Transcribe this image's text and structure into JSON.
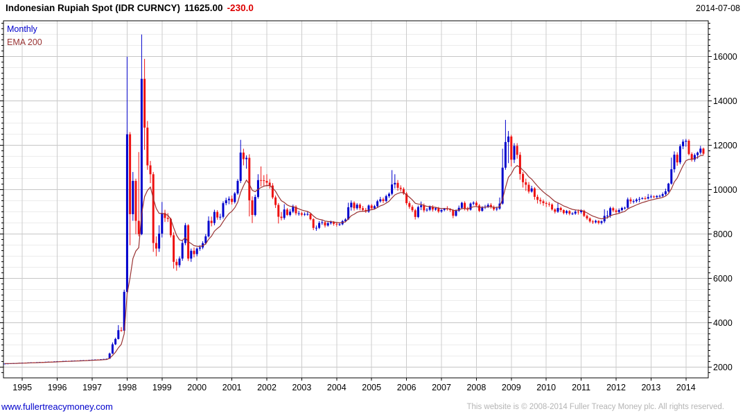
{
  "title": {
    "instrument": "Indonesian Rupiah Spot (IDR CURNCY)",
    "last": "11625.00",
    "change": "-230.0",
    "date": "2014-07-08"
  },
  "legend": {
    "series_label": "Monthly",
    "ema_label": "EMA 200"
  },
  "footer": {
    "site_link": "www.fullertreacymoney.com",
    "copyright": "This website is © 2008-2014 Fuller Treacy Money plc. All rights reserved."
  },
  "colors": {
    "up_candle": "#0000cc",
    "down_candle": "#ee1111",
    "ema_line": "#993333",
    "grid_minor": "#ececec",
    "grid_major": "#c6c6c6",
    "grid_year": "#cccccc",
    "axis": "#000000",
    "change_text": "#dd0000",
    "link_text": "#0000cc",
    "copyright_text": "#b4b4b4"
  },
  "chart_data": {
    "type": "candlestick",
    "title": "Indonesian Rupiah Spot (IDR CURNCY)",
    "timeframe": "Monthly",
    "start_month": "1994-07",
    "end_month": "2014-07",
    "last_price": 11625.0,
    "change": -230.0,
    "ylim": [
      1520,
      17620
    ],
    "y_ticks": [
      2000,
      4000,
      6000,
      8000,
      10000,
      12000,
      14000,
      16000
    ],
    "y_minor_step": 500,
    "x_ticks": [
      1995,
      1996,
      1997,
      1998,
      1999,
      2000,
      2001,
      2002,
      2003,
      2004,
      2005,
      2006,
      2007,
      2008,
      2009,
      2010,
      2011,
      2012,
      2013,
      2014
    ],
    "axis_side": "right",
    "grid": true,
    "legend_position": "top-left",
    "up_means": "close above open (rupiah weakens)",
    "ema": {
      "label": "EMA 200",
      "smoothing_alpha": 0.2
    },
    "ohlc": [
      [
        2160,
        2168,
        2154,
        2166
      ],
      [
        2166,
        2174,
        2160,
        2172
      ],
      [
        2172,
        2180,
        2166,
        2178
      ],
      [
        2178,
        2186,
        2172,
        2184
      ],
      [
        2184,
        2192,
        2178,
        2190
      ],
      [
        2190,
        2200,
        2184,
        2198
      ],
      [
        2198,
        2209,
        2193,
        2206
      ],
      [
        2206,
        2212,
        2198,
        2203
      ],
      [
        2203,
        2216,
        2199,
        2213
      ],
      [
        2213,
        2222,
        2207,
        2219
      ],
      [
        2219,
        2226,
        2211,
        2216
      ],
      [
        2216,
        2232,
        2212,
        2229
      ],
      [
        2229,
        2238,
        2223,
        2235
      ],
      [
        2235,
        2241,
        2227,
        2231
      ],
      [
        2231,
        2248,
        2227,
        2245
      ],
      [
        2245,
        2254,
        2239,
        2251
      ],
      [
        2251,
        2257,
        2243,
        2248
      ],
      [
        2248,
        2266,
        2244,
        2263
      ],
      [
        2263,
        2274,
        2257,
        2271
      ],
      [
        2271,
        2277,
        2263,
        2268
      ],
      [
        2268,
        2284,
        2264,
        2281
      ],
      [
        2281,
        2290,
        2275,
        2287
      ],
      [
        2287,
        2293,
        2279,
        2284
      ],
      [
        2284,
        2300,
        2280,
        2297
      ],
      [
        2297,
        2306,
        2291,
        2303
      ],
      [
        2303,
        2309,
        2295,
        2300
      ],
      [
        2300,
        2316,
        2296,
        2313
      ],
      [
        2313,
        2322,
        2307,
        2319
      ],
      [
        2319,
        2325,
        2311,
        2316
      ],
      [
        2316,
        2336,
        2312,
        2333
      ],
      [
        2333,
        2344,
        2327,
        2341
      ],
      [
        2341,
        2351,
        2335,
        2348
      ],
      [
        2348,
        2354,
        2340,
        2345
      ],
      [
        2345,
        2365,
        2341,
        2362
      ],
      [
        2362,
        2376,
        2356,
        2373
      ],
      [
        2373,
        2388,
        2367,
        2385
      ],
      [
        2385,
        2660,
        2380,
        2620
      ],
      [
        2620,
        3120,
        2600,
        3035
      ],
      [
        3035,
        3330,
        3000,
        3275
      ],
      [
        3275,
        3900,
        3250,
        3670
      ],
      [
        3670,
        3810,
        3600,
        3650
      ],
      [
        3650,
        5500,
        3640,
        5400
      ],
      [
        5400,
        16000,
        5300,
        12500
      ],
      [
        12500,
        12600,
        7500,
        8900
      ],
      [
        8900,
        10800,
        8600,
        10400
      ],
      [
        10400,
        10500,
        8000,
        8600
      ],
      [
        8600,
        11700,
        7900,
        8000
      ],
      [
        8000,
        17000,
        7950,
        15000
      ],
      [
        15000,
        15900,
        11800,
        12800
      ],
      [
        12800,
        13100,
        10900,
        11100
      ],
      [
        11100,
        11300,
        10300,
        10700
      ],
      [
        10700,
        10800,
        7200,
        7600
      ],
      [
        7600,
        7900,
        7000,
        7350
      ],
      [
        7350,
        8400,
        7200,
        8025
      ],
      [
        8025,
        9450,
        7850,
        8950
      ],
      [
        8950,
        9100,
        8550,
        8730
      ],
      [
        8730,
        8950,
        8550,
        8685
      ],
      [
        8685,
        8740,
        7850,
        7950
      ],
      [
        7950,
        8080,
        6450,
        6750
      ],
      [
        6750,
        6880,
        6350,
        6600
      ],
      [
        6600,
        7000,
        6500,
        6900
      ],
      [
        6900,
        7750,
        6800,
        7600
      ],
      [
        7600,
        8500,
        7500,
        8400
      ],
      [
        8400,
        8450,
        6790,
        6900
      ],
      [
        6900,
        7350,
        6750,
        7250
      ],
      [
        7250,
        7400,
        6950,
        7100
      ],
      [
        7100,
        7400,
        7000,
        7350
      ],
      [
        7350,
        7500,
        7250,
        7400
      ],
      [
        7400,
        7680,
        7320,
        7590
      ],
      [
        7590,
        8000,
        7530,
        7900
      ],
      [
        7900,
        8800,
        7850,
        8600
      ],
      [
        8600,
        8790,
        8350,
        8500
      ],
      [
        8500,
        9100,
        8400,
        9000
      ],
      [
        9000,
        9080,
        8650,
        8750
      ],
      [
        8750,
        8920,
        8640,
        8780
      ],
      [
        8780,
        9480,
        8700,
        9395
      ],
      [
        9395,
        9640,
        9300,
        9530
      ],
      [
        9530,
        9700,
        9350,
        9595
      ],
      [
        9595,
        9740,
        9330,
        9450
      ],
      [
        9450,
        9900,
        9380,
        9835
      ],
      [
        9835,
        10480,
        9770,
        10400
      ],
      [
        10400,
        12250,
        10300,
        11675
      ],
      [
        11675,
        11850,
        11100,
        11380
      ],
      [
        11380,
        11550,
        10950,
        11440
      ],
      [
        11440,
        11600,
        8800,
        9525
      ],
      [
        9525,
        9700,
        8500,
        8865
      ],
      [
        8865,
        9780,
        8800,
        9675
      ],
      [
        9675,
        10700,
        9600,
        10435
      ],
      [
        10435,
        11050,
        10150,
        10430
      ],
      [
        10430,
        10660,
        10180,
        10400
      ],
      [
        10400,
        10700,
        10150,
        10320
      ],
      [
        10320,
        10480,
        10050,
        10190
      ],
      [
        10190,
        10300,
        9580,
        9655
      ],
      [
        9655,
        9740,
        9180,
        9316
      ],
      [
        9316,
        9400,
        8480,
        8785
      ],
      [
        8785,
        9000,
        8620,
        8730
      ],
      [
        8730,
        9350,
        8650,
        9110
      ],
      [
        9110,
        9180,
        8820,
        8867
      ],
      [
        8867,
        9130,
        8800,
        9015
      ],
      [
        9015,
        9330,
        8950,
        9233
      ],
      [
        9233,
        9300,
        8850,
        8940
      ],
      [
        8940,
        9050,
        8830,
        8940
      ],
      [
        8940,
        9010,
        8800,
        8876
      ],
      [
        8876,
        8980,
        8820,
        8905
      ],
      [
        8905,
        9020,
        8830,
        8908
      ],
      [
        8908,
        8960,
        8620,
        8675
      ],
      [
        8675,
        8720,
        8180,
        8279
      ],
      [
        8279,
        8390,
        8150,
        8285
      ],
      [
        8285,
        8590,
        8230,
        8505
      ],
      [
        8505,
        8620,
        8420,
        8535
      ],
      [
        8535,
        8590,
        8300,
        8389
      ],
      [
        8389,
        8560,
        8340,
        8495
      ],
      [
        8495,
        8610,
        8430,
        8537
      ],
      [
        8537,
        8590,
        8380,
        8465
      ],
      [
        8465,
        8530,
        8340,
        8441
      ],
      [
        8441,
        8530,
        8370,
        8447
      ],
      [
        8447,
        8640,
        8400,
        8587
      ],
      [
        8587,
        8720,
        8530,
        8661
      ],
      [
        8661,
        9415,
        8640,
        9210
      ],
      [
        9210,
        9520,
        9060,
        9415
      ],
      [
        9415,
        9480,
        9060,
        9168
      ],
      [
        9168,
        9400,
        9100,
        9328
      ],
      [
        9328,
        9390,
        9080,
        9170
      ],
      [
        9170,
        9270,
        9010,
        9090
      ],
      [
        9090,
        9180,
        8960,
        9018
      ],
      [
        9018,
        9340,
        8960,
        9290
      ],
      [
        9290,
        9360,
        9100,
        9165
      ],
      [
        9165,
        9320,
        9110,
        9260
      ],
      [
        9260,
        9550,
        9200,
        9480
      ],
      [
        9480,
        9680,
        9420,
        9570
      ],
      [
        9570,
        9650,
        9400,
        9495
      ],
      [
        9495,
        9780,
        9440,
        9713
      ],
      [
        9713,
        9880,
        9630,
        9819
      ],
      [
        9819,
        10885,
        9750,
        10240
      ],
      [
        10240,
        10700,
        10060,
        10310
      ],
      [
        10310,
        10440,
        9950,
        10090
      ],
      [
        10090,
        10200,
        9920,
        10035
      ],
      [
        10035,
        10110,
        9770,
        9830
      ],
      [
        9830,
        9900,
        9310,
        9395
      ],
      [
        9395,
        9480,
        9140,
        9230
      ],
      [
        9230,
        9310,
        8990,
        9075
      ],
      [
        9075,
        9140,
        8660,
        8775
      ],
      [
        8775,
        9290,
        8720,
        9220
      ],
      [
        9220,
        9470,
        9080,
        9300
      ],
      [
        9300,
        9380,
        8980,
        9070
      ],
      [
        9070,
        9180,
        9010,
        9100
      ],
      [
        9100,
        9290,
        9040,
        9235
      ],
      [
        9235,
        9300,
        9020,
        9110
      ],
      [
        9110,
        9220,
        9050,
        9165
      ],
      [
        9165,
        9230,
        8950,
        9020
      ],
      [
        9020,
        9130,
        8960,
        9090
      ],
      [
        9090,
        9180,
        9030,
        9160
      ],
      [
        9160,
        9260,
        9060,
        9118
      ],
      [
        9118,
        9170,
        9000,
        9083
      ],
      [
        9083,
        9130,
        8720,
        8828
      ],
      [
        8828,
        9110,
        8790,
        9054
      ],
      [
        9054,
        9290,
        9000,
        9186
      ],
      [
        9186,
        9460,
        9120,
        9410
      ],
      [
        9410,
        9480,
        9070,
        9137
      ],
      [
        9137,
        9230,
        9030,
        9103
      ],
      [
        9103,
        9430,
        9060,
        9376
      ],
      [
        9376,
        9480,
        9300,
        9419
      ],
      [
        9419,
        9500,
        9220,
        9291
      ],
      [
        9291,
        9360,
        8990,
        9051
      ],
      [
        9051,
        9260,
        9010,
        9217
      ],
      [
        9217,
        9320,
        9130,
        9234
      ],
      [
        9234,
        9390,
        9180,
        9318
      ],
      [
        9318,
        9400,
        9150,
        9225
      ],
      [
        9225,
        9290,
        9050,
        9118
      ],
      [
        9118,
        9240,
        9040,
        9153
      ],
      [
        9153,
        9650,
        9100,
        9378
      ],
      [
        9378,
        11850,
        9330,
        10995
      ],
      [
        10995,
        13150,
        10900,
        12151
      ],
      [
        12151,
        12650,
        11200,
        12400
      ],
      [
        12400,
        12475,
        11050,
        11355
      ],
      [
        11355,
        12100,
        11200,
        11980
      ],
      [
        11980,
        12100,
        11400,
        11575
      ],
      [
        11575,
        11700,
        10450,
        10713
      ],
      [
        10713,
        10800,
        10100,
        10340
      ],
      [
        10340,
        10500,
        9950,
        10225
      ],
      [
        10225,
        10350,
        9830,
        9920
      ],
      [
        9920,
        10180,
        9870,
        10060
      ],
      [
        10060,
        10120,
        9550,
        9681
      ],
      [
        9681,
        9780,
        9380,
        9545
      ],
      [
        9545,
        9650,
        9350,
        9480
      ],
      [
        9480,
        9560,
        9280,
        9400
      ],
      [
        9400,
        9470,
        9220,
        9365
      ],
      [
        9365,
        9450,
        9240,
        9335
      ],
      [
        9335,
        9390,
        9060,
        9115
      ],
      [
        9115,
        9170,
        8930,
        9012
      ],
      [
        9012,
        9420,
        8960,
        9180
      ],
      [
        9180,
        9240,
        8990,
        9083
      ],
      [
        9083,
        9120,
        8890,
        8952
      ],
      [
        8952,
        9090,
        8880,
        9041
      ],
      [
        9041,
        9080,
        8850,
        8924
      ],
      [
        8924,
        8990,
        8860,
        8928
      ],
      [
        8928,
        9090,
        8870,
        9013
      ],
      [
        9013,
        9110,
        8880,
        8991
      ],
      [
        8991,
        9120,
        8920,
        9057
      ],
      [
        9057,
        9100,
        8770,
        8823
      ],
      [
        8823,
        8880,
        8640,
        8709
      ],
      [
        8709,
        8760,
        8510,
        8574
      ],
      [
        8574,
        8640,
        8460,
        8537
      ],
      [
        8537,
        8650,
        8480,
        8597
      ],
      [
        8597,
        8630,
        8440,
        8508
      ],
      [
        8508,
        8620,
        8440,
        8578
      ],
      [
        8578,
        9120,
        8500,
        8823
      ],
      [
        8823,
        9060,
        8700,
        8835
      ],
      [
        8835,
        9240,
        8740,
        9170
      ],
      [
        9170,
        9230,
        8990,
        9068
      ],
      [
        9068,
        9150,
        8880,
        9000
      ],
      [
        9000,
        9160,
        8920,
        9085
      ],
      [
        9085,
        9230,
        9020,
        9180
      ],
      [
        9180,
        9240,
        9110,
        9190
      ],
      [
        9190,
        9650,
        9150,
        9565
      ],
      [
        9565,
        9660,
        9360,
        9480
      ],
      [
        9480,
        9570,
        9380,
        9485
      ],
      [
        9485,
        9620,
        9420,
        9560
      ],
      [
        9560,
        9680,
        9440,
        9588
      ],
      [
        9588,
        9670,
        9560,
        9615
      ],
      [
        9615,
        9700,
        9540,
        9605
      ],
      [
        9605,
        9810,
        9560,
        9670
      ],
      [
        9670,
        9780,
        9610,
        9698
      ],
      [
        9698,
        9750,
        9620,
        9667
      ],
      [
        9667,
        9760,
        9620,
        9719
      ],
      [
        9719,
        9780,
        9650,
        9722
      ],
      [
        9722,
        9880,
        9650,
        9802
      ],
      [
        9802,
        10050,
        9740,
        9929
      ],
      [
        9929,
        10310,
        9880,
        10278
      ],
      [
        10278,
        11450,
        10230,
        10924
      ],
      [
        10924,
        11730,
        10780,
        11580
      ],
      [
        11580,
        11690,
        11080,
        11234
      ],
      [
        11234,
        12050,
        11150,
        11963
      ],
      [
        11963,
        12270,
        11830,
        12170
      ],
      [
        12170,
        12290,
        11940,
        12210
      ],
      [
        12210,
        12280,
        11550,
        11609
      ],
      [
        11609,
        11690,
        11270,
        11360
      ],
      [
        11360,
        11640,
        11260,
        11563
      ],
      [
        11563,
        11720,
        11400,
        11675
      ],
      [
        11675,
        11980,
        11590,
        11855
      ],
      [
        11855,
        11900,
        11550,
        11625
      ]
    ]
  }
}
